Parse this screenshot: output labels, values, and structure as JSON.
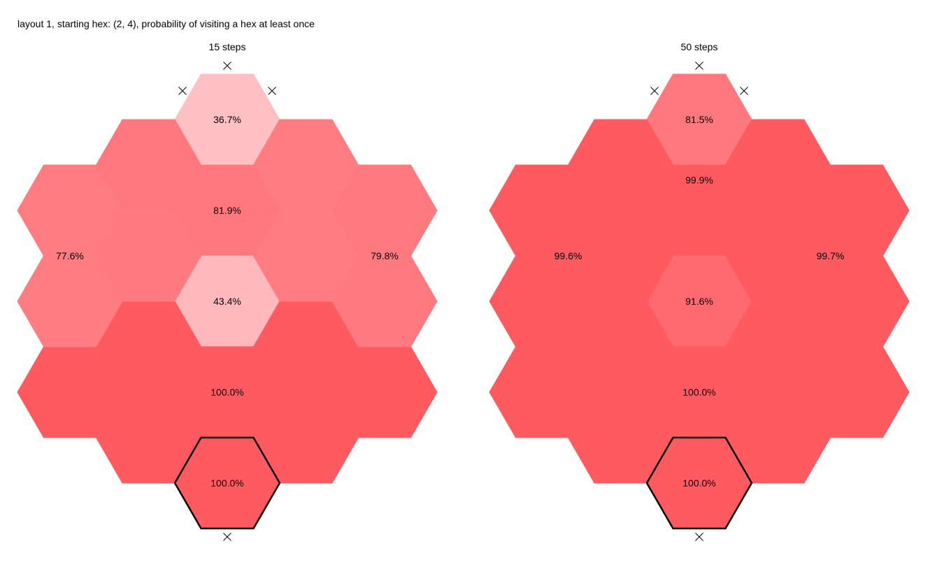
{
  "title": "layout 1, starting hex: (2, 4), probability of visiting a hex at least once",
  "colors": {
    "max": "#ff5a60",
    "low": "#ffc0c4",
    "start_border": "#000000",
    "blocked_marker": "#000000"
  },
  "panels": [
    {
      "subtitle": "15 steps",
      "regions": [
        {
          "label": "36.7%",
          "fill": "#ffc0c4",
          "hexes": [
            [
              2,
              0
            ]
          ]
        },
        {
          "label": "81.9%",
          "fill": "#ff787d",
          "hexes": [
            [
              2,
              1
            ]
          ]
        },
        {
          "label": "43.4%",
          "fill": "#ffb9bd",
          "hexes": [
            [
              2,
              2
            ]
          ]
        },
        {
          "label": "100.0%",
          "fill": "#ff5a60",
          "hexes": [
            [
              2,
              3
            ],
            [
              1,
              2.5
            ],
            [
              3,
              2.5
            ],
            [
              0,
              3
            ],
            [
              4,
              3
            ],
            [
              1,
              3.5
            ],
            [
              3,
              3.5
            ]
          ]
        },
        {
          "label": "100.0%",
          "fill": "#ff5a60",
          "hexes": [
            [
              2,
              4
            ]
          ]
        },
        {
          "label": "77.6%",
          "fill": "#ff7c81",
          "hexes": [
            [
              0,
              1
            ],
            [
              0,
              2
            ]
          ]
        },
        {
          "label": "79.8%",
          "fill": "#ff7a7f",
          "hexes": [
            [
              4,
              1
            ],
            [
              4,
              2
            ]
          ]
        },
        {
          "label": "",
          "fill": "#ff787d",
          "hexes": [
            [
              1,
              0.5
            ]
          ]
        },
        {
          "label": "",
          "fill": "#ff7c81",
          "hexes": [
            [
              3,
              0.5
            ]
          ]
        },
        {
          "label": "",
          "fill": "#ff7b80",
          "hexes": [
            [
              1,
              1.5
            ]
          ]
        },
        {
          "label": "",
          "fill": "#ff7c81",
          "hexes": [
            [
              3,
              1.5
            ]
          ]
        }
      ]
    },
    {
      "subtitle": "50 steps",
      "regions": [
        {
          "label": "81.5%",
          "fill": "#ff787d",
          "hexes": [
            [
              2,
              0
            ]
          ]
        },
        {
          "label": "99.9%",
          "fill": "#ff5a60",
          "hexes": [
            [
              2,
              1
            ],
            [
              1,
              0.5
            ],
            [
              3,
              0.5
            ]
          ]
        },
        {
          "label": "91.6%",
          "fill": "#ff6a70",
          "hexes": [
            [
              2,
              2
            ]
          ]
        },
        {
          "label": "100.0%",
          "fill": "#ff5a60",
          "hexes": [
            [
              2,
              3
            ],
            [
              1,
              2.5
            ],
            [
              3,
              2.5
            ],
            [
              0,
              3
            ],
            [
              4,
              3
            ],
            [
              1,
              3.5
            ],
            [
              3,
              3.5
            ]
          ]
        },
        {
          "label": "100.0%",
          "fill": "#ff5a60",
          "hexes": [
            [
              2,
              4
            ]
          ]
        },
        {
          "label": "99.6%",
          "fill": "#ff5a60",
          "hexes": [
            [
              0,
              1
            ],
            [
              0,
              2
            ],
            [
              1,
              1.5
            ]
          ]
        },
        {
          "label": "99.7%",
          "fill": "#ff5a60",
          "hexes": [
            [
              4,
              1
            ],
            [
              4,
              2
            ],
            [
              3,
              1.5
            ]
          ]
        }
      ]
    }
  ],
  "start_hex": [
    2,
    4
  ],
  "blocked_markers": [
    {
      "direction": "top",
      "hex": [
        2,
        0
      ]
    },
    {
      "direction": "top-left",
      "hex": [
        2,
        0
      ]
    },
    {
      "direction": "top-right",
      "hex": [
        2,
        0
      ]
    },
    {
      "direction": "bottom",
      "hex": [
        2,
        4
      ]
    }
  ]
}
